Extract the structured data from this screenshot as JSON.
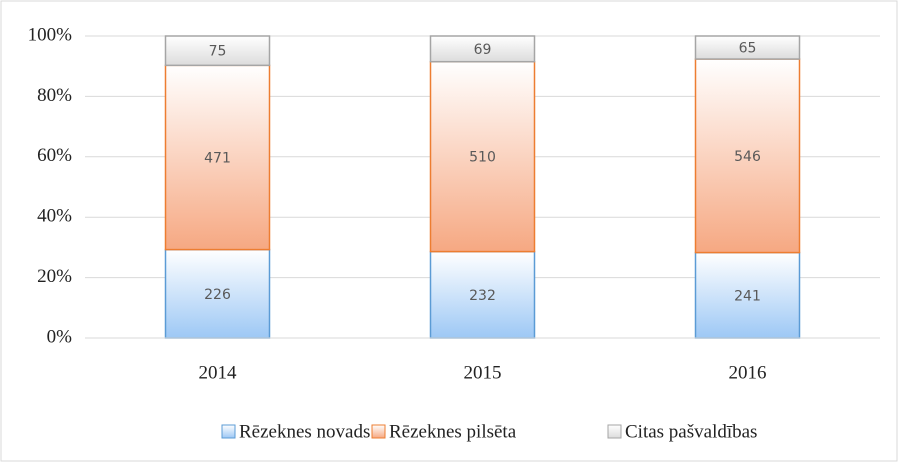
{
  "chart_data": {
    "type": "bar",
    "stacking": "percent",
    "categories": [
      "2014",
      "2015",
      "2016"
    ],
    "series": [
      {
        "name": "Rēzeknes novads",
        "color": "#9dc8f5",
        "edgecolor": "#5b9bd5",
        "values": [
          226,
          232,
          241
        ]
      },
      {
        "name": "Rēzeknes pilsēta",
        "color": "#f6a882",
        "edgecolor": "#ed7d31",
        "values": [
          471,
          510,
          546
        ]
      },
      {
        "name": "Citas pašvaldības",
        "color": "#dcdcdc",
        "edgecolor": "#a5a5a5",
        "values": [
          75,
          69,
          65
        ]
      }
    ],
    "ylim": [
      0,
      100
    ],
    "yticks": [
      {
        "value": 0,
        "label": "0%"
      },
      {
        "value": 20,
        "label": "20%"
      },
      {
        "value": 40,
        "label": "40%"
      },
      {
        "value": 60,
        "label": "60%"
      },
      {
        "value": 80,
        "label": "80%"
      },
      {
        "value": 100,
        "label": "100%"
      }
    ],
    "grid": true,
    "legend": "bottom"
  }
}
